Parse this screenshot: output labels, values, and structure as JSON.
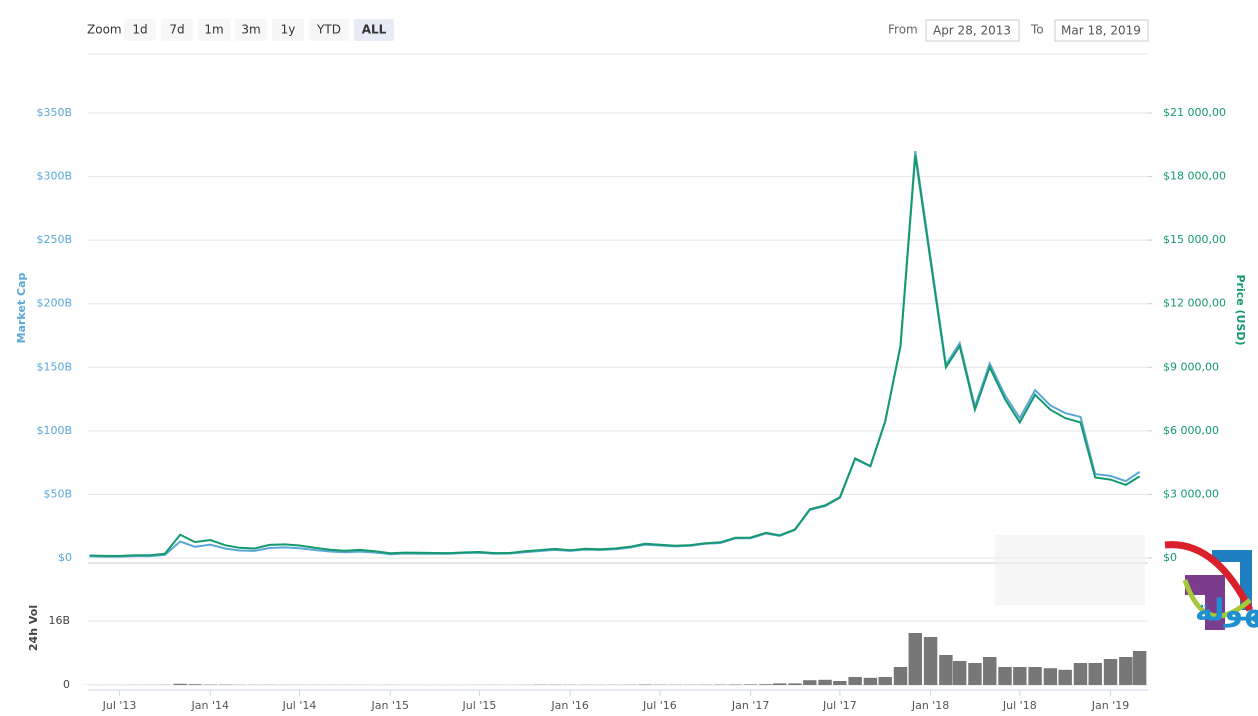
{
  "toolbar": {
    "zoom_label": "Zoom",
    "buttons": [
      "1d",
      "7d",
      "1m",
      "3m",
      "1y",
      "YTD",
      "ALL"
    ],
    "active": 6,
    "from_label": "From",
    "from": "Apr 28, 2013",
    "to_label": "To",
    "to": "Mar 18, 2019"
  },
  "watermark": "التداول بسهولة",
  "chart_data": {
    "type": "line",
    "x": [
      "2013-05",
      "2013-06",
      "2013-07",
      "2013-08",
      "2013-09",
      "2013-10",
      "2013-11",
      "2013-12",
      "2014-01",
      "2014-02",
      "2014-03",
      "2014-04",
      "2014-05",
      "2014-06",
      "2014-07",
      "2014-08",
      "2014-09",
      "2014-10",
      "2014-11",
      "2014-12",
      "2015-01",
      "2015-02",
      "2015-03",
      "2015-04",
      "2015-05",
      "2015-06",
      "2015-07",
      "2015-08",
      "2015-09",
      "2015-10",
      "2015-11",
      "2015-12",
      "2016-01",
      "2016-02",
      "2016-03",
      "2016-04",
      "2016-05",
      "2016-06",
      "2016-07",
      "2016-08",
      "2016-09",
      "2016-10",
      "2016-11",
      "2016-12",
      "2017-01",
      "2017-02",
      "2017-03",
      "2017-04",
      "2017-05",
      "2017-06",
      "2017-07",
      "2017-08",
      "2017-09",
      "2017-10",
      "2017-11",
      "2017-12",
      "2018-01",
      "2018-02",
      "2018-03",
      "2018-04",
      "2018-05",
      "2018-06",
      "2018-07",
      "2018-08",
      "2018-09",
      "2018-10",
      "2018-11",
      "2018-12",
      "2019-01",
      "2019-02",
      "2019-03"
    ],
    "xlim": [
      "2013-04-28",
      "2019-03-18"
    ],
    "xticks": [
      {
        "value": "2013-07",
        "label": "Jul '13"
      },
      {
        "value": "2014-01",
        "label": "Jan '14"
      },
      {
        "value": "2014-07",
        "label": "Jul '14"
      },
      {
        "value": "2015-01",
        "label": "Jan '15"
      },
      {
        "value": "2015-07",
        "label": "Jul '15"
      },
      {
        "value": "2016-01",
        "label": "Jan '16"
      },
      {
        "value": "2016-07",
        "label": "Jul '16"
      },
      {
        "value": "2017-01",
        "label": "Jan '17"
      },
      {
        "value": "2017-07",
        "label": "Jul '17"
      },
      {
        "value": "2018-01",
        "label": "Jan '18"
      },
      {
        "value": "2018-07",
        "label": "Jul '18"
      },
      {
        "value": "2019-01",
        "label": "Jan '19"
      }
    ],
    "ylim": [
      0,
      350
    ],
    "yticks": [
      {
        "value": 0,
        "label": "$0"
      },
      {
        "value": 50,
        "label": "$50B"
      },
      {
        "value": 100,
        "label": "$100B"
      },
      {
        "value": 150,
        "label": "$150B"
      },
      {
        "value": 200,
        "label": "$200B"
      },
      {
        "value": 250,
        "label": "$250B"
      },
      {
        "value": 300,
        "label": "$300B"
      },
      {
        "value": 350,
        "label": "$350B"
      }
    ],
    "y2lim": [
      0,
      21000
    ],
    "y2ticks": [
      {
        "value": 0,
        "label": "$0"
      },
      {
        "value": 3000,
        "label": "$3 000,00"
      },
      {
        "value": 6000,
        "label": "$6 000,00"
      },
      {
        "value": 9000,
        "label": "$9 000,00"
      },
      {
        "value": 12000,
        "label": "$12 000,00"
      },
      {
        "value": 15000,
        "label": "$15 000,00"
      },
      {
        "value": 18000,
        "label": "$18 000,00"
      },
      {
        "value": 21000,
        "label": "$21 000,00"
      }
    ],
    "y3lim": [
      0,
      30
    ],
    "y3ticks": [
      0,
      {
        "value": 16,
        "label": "16B"
      }
    ],
    "grid": true,
    "series": [
      {
        "name": "Market Cap",
        "color": "#5aa8d8",
        "axis": "y",
        "values": [
          1.3,
          1.1,
          1.1,
          1.5,
          1.5,
          2.4,
          13,
          8.8,
          10.5,
          7.4,
          5.9,
          5.6,
          7.9,
          8.3,
          7.6,
          6.3,
          5.1,
          4.5,
          5.0,
          4.3,
          3.0,
          3.5,
          3.4,
          3.3,
          3.3,
          3.9,
          4.2,
          3.4,
          3.5,
          4.6,
          5.5,
          6.4,
          5.6,
          6.6,
          6.3,
          6.9,
          8.2,
          10.5,
          9.8,
          9.1,
          9.7,
          11.2,
          11.8,
          15.4,
          15.5,
          19.3,
          17.4,
          22.1,
          37.8,
          40.8,
          47.3,
          77.8,
          72.0,
          107.3,
          166.8,
          320,
          236,
          152,
          169,
          119,
          153,
          128,
          110,
          132,
          120,
          114,
          111,
          66,
          64.6,
          60.5,
          67.8
        ]
      },
      {
        "name": "Price (USD)",
        "color": "#16996f",
        "axis": "y2",
        "values": [
          120,
          100,
          95,
          130,
          130,
          200,
          1100,
          750,
          850,
          600,
          480,
          450,
          620,
          640,
          590,
          480,
          390,
          340,
          380,
          320,
          220,
          255,
          245,
          235,
          230,
          265,
          285,
          230,
          236,
          315,
          375,
          430,
          370,
          435,
          416,
          450,
          530,
          670,
          625,
          575,
          610,
          700,
          740,
          960,
          965,
          1190,
          1070,
          1350,
          2300,
          2480,
          2870,
          4700,
          4340,
          6450,
          10000,
          19000,
          14000,
          9000,
          10000,
          7000,
          9000,
          7500,
          6400,
          7700,
          7000,
          6600,
          6400,
          3800,
          3700,
          3450,
          3850
        ]
      },
      {
        "name": "24h Vol",
        "color": "#777777",
        "axis": "y3",
        "values": [
          0.02,
          0.02,
          0.02,
          0.03,
          0.03,
          0.05,
          0.3,
          0.2,
          0.1,
          0.1,
          0.05,
          0.05,
          0.05,
          0.04,
          0.03,
          0.03,
          0.03,
          0.03,
          0.03,
          0.02,
          0.03,
          0.02,
          0.02,
          0.02,
          0.02,
          0.02,
          0.03,
          0.03,
          0.02,
          0.04,
          0.08,
          0.07,
          0.06,
          0.05,
          0.04,
          0.05,
          0.06,
          0.12,
          0.08,
          0.06,
          0.06,
          0.07,
          0.09,
          0.12,
          0.15,
          0.2,
          0.4,
          0.4,
          1.2,
          1.3,
          1.0,
          2.0,
          1.8,
          2.0,
          4.5,
          13,
          12,
          7.5,
          6,
          5.5,
          7,
          4.5,
          4.5,
          4.5,
          4.2,
          3.8,
          5.5,
          5.5,
          6.5,
          7,
          8.5
        ]
      }
    ]
  }
}
